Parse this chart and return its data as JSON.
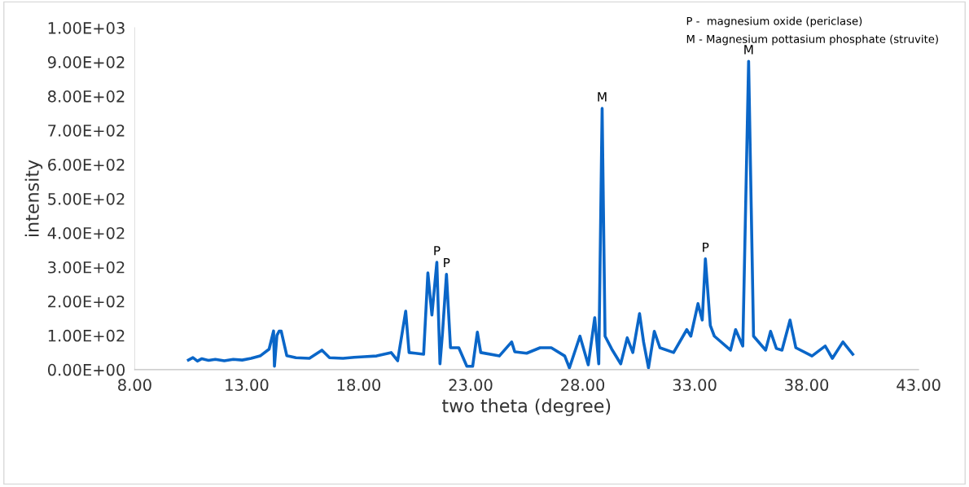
{
  "chart_data": {
    "type": "line",
    "xlabel": "two theta (degree)",
    "ylabel": "intensity",
    "x": [
      10.4,
      10.6,
      10.8,
      11.0,
      11.3,
      11.6,
      12.0,
      12.4,
      12.8,
      13.2,
      13.6,
      14.0,
      14.2,
      14.24,
      14.35,
      14.45,
      14.54,
      14.79,
      15.2,
      15.8,
      16.36,
      16.7,
      17.3,
      17.8,
      18.25,
      18.8,
      19.45,
      19.74,
      20.1,
      20.25,
      20.9,
      21.09,
      21.27,
      21.49,
      21.63,
      21.74,
      21.92,
      22.1,
      22.47,
      22.83,
      23.09,
      23.3,
      23.45,
      24.28,
      24.83,
      24.97,
      25.5,
      26.1,
      26.6,
      27.2,
      27.41,
      27.88,
      28.25,
      28.54,
      28.72,
      28.87,
      29.0,
      29.3,
      29.7,
      29.99,
      30.24,
      30.54,
      30.72,
      30.94,
      31.2,
      31.45,
      32.06,
      32.65,
      32.83,
      33.15,
      33.34,
      33.48,
      33.7,
      33.88,
      34.6,
      34.83,
      35.15,
      35.41,
      35.63,
      36.17,
      36.39,
      36.65,
      36.9,
      37.26,
      37.52,
      38.24,
      38.83,
      39.15,
      39.62,
      40.06
    ],
    "series": [
      {
        "color": "#0a66c8",
        "values": [
          28,
          35,
          25,
          32,
          27,
          30,
          26,
          30,
          28,
          33,
          40,
          60,
          113,
          10,
          100,
          113,
          113,
          41,
          35,
          33,
          57,
          35,
          33,
          36,
          38,
          40,
          50,
          26,
          171,
          50,
          45,
          283,
          160,
          314,
          17,
          105,
          279,
          64,
          64,
          10,
          10,
          110,
          50,
          40,
          81,
          52,
          48,
          64,
          64,
          40,
          5,
          98,
          14,
          152,
          17,
          764,
          98,
          60,
          17,
          93,
          50,
          164,
          81,
          5,
          112,
          64,
          50,
          117,
          98,
          193,
          145,
          324,
          129,
          98,
          57,
          117,
          69,
          902,
          98,
          57,
          112,
          62,
          57,
          145,
          64,
          40,
          69,
          33,
          81,
          45
        ]
      }
    ],
    "xlim": [
      8,
      43
    ],
    "xticks": [
      {
        "value": 8,
        "label": "8.00"
      },
      {
        "value": 13,
        "label": "13.00"
      },
      {
        "value": 18,
        "label": "18.00"
      },
      {
        "value": 23,
        "label": "23.00"
      },
      {
        "value": 28,
        "label": "28.00"
      },
      {
        "value": 33,
        "label": "33.00"
      },
      {
        "value": 38,
        "label": "38.00"
      },
      {
        "value": 43,
        "label": "43.00"
      }
    ],
    "ylim": [
      0,
      1000
    ],
    "yticks": [
      {
        "value": 0,
        "label": "0.00E+00"
      },
      {
        "value": 100,
        "label": "1.00E+02"
      },
      {
        "value": 200,
        "label": "2.00E+02"
      },
      {
        "value": 300,
        "label": "3.00E+02"
      },
      {
        "value": 400,
        "label": "4.00E+02"
      },
      {
        "value": 500,
        "label": "5.00E+02"
      },
      {
        "value": 600,
        "label": "6.00E+02"
      },
      {
        "value": 700,
        "label": "7.00E+02"
      },
      {
        "value": 800,
        "label": "8.00E+02"
      },
      {
        "value": 900,
        "label": "9.00E+02"
      },
      {
        "value": 1000,
        "label": "1.00E+03"
      }
    ],
    "annotations": [
      "P -  magnesium oxide (periclase)",
      "M - Magnesium pottasium phosphate (struvite)",
      {
        "text": "P",
        "x": 21.49,
        "y": 314
      },
      {
        "text": "P",
        "x": 21.92,
        "y": 279
      },
      {
        "text": "M",
        "x": 28.87,
        "y": 764
      },
      {
        "text": "P",
        "x": 33.48,
        "y": 324
      },
      {
        "text": "M",
        "x": 35.41,
        "y": 902
      }
    ]
  }
}
